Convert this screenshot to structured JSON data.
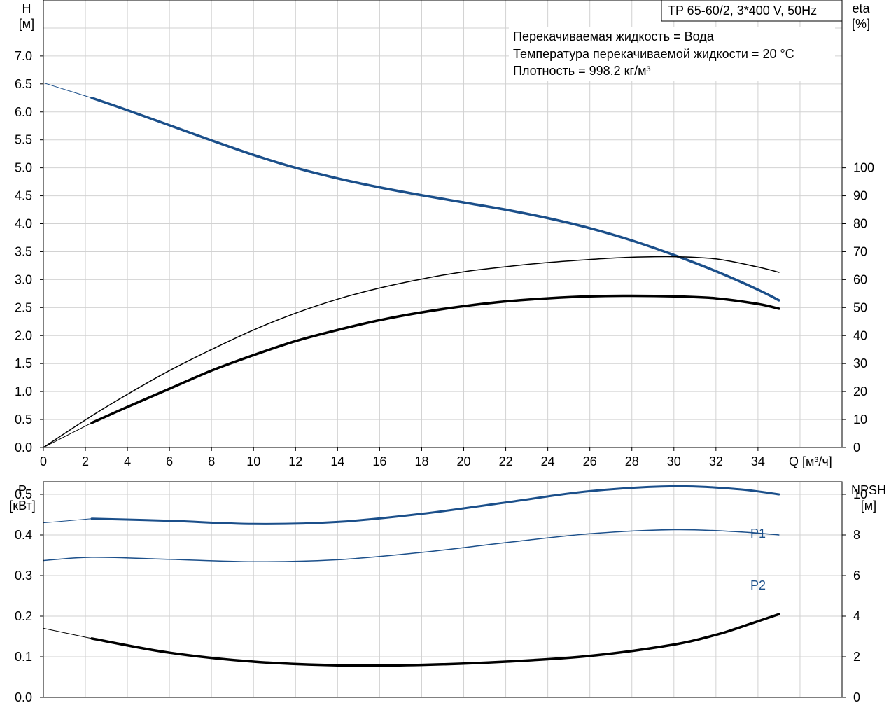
{
  "header": {
    "model": "TP 65-60/2, 3*400 V, 50Hz"
  },
  "info": {
    "line1": "Перекачиваемая жидкость = Вода",
    "line2": "Температура перекачиваемой жидкости = 20 °C",
    "line3": "Плотность = 998.2 кг/м³"
  },
  "labels": {
    "h_unit_name": "H",
    "h_unit": "[м]",
    "eta_unit_name": "eta",
    "eta_unit": "[%]",
    "q_unit": "Q [м³/ч]",
    "p_unit_name": "P",
    "p_unit": "[кВт]",
    "npsh_unit_name": "NPSH",
    "npsh_unit": "[м]",
    "p1": "P1",
    "p2": "P2"
  },
  "colors": {
    "blue": "#1b4f8a",
    "black": "#000000",
    "grid": "#d2d2d2"
  },
  "chart_data": [
    {
      "type": "line",
      "title": "",
      "xlabel": "Q [м³/ч]",
      "ylabel": "H [м]",
      "y2label": "eta [%]",
      "xlim": [
        0,
        38
      ],
      "ylim": [
        0,
        8
      ],
      "y2lim": [
        0,
        160
      ],
      "grid": true,
      "x_ticks": [
        0,
        2,
        4,
        6,
        8,
        10,
        12,
        14,
        16,
        18,
        20,
        22,
        24,
        26,
        28,
        30,
        32,
        34
      ],
      "y_ticks": [
        0.0,
        0.5,
        1.0,
        1.5,
        2.0,
        2.5,
        3.0,
        3.5,
        4.0,
        4.5,
        5.0,
        5.5,
        6.0,
        6.5,
        7.0
      ],
      "y2_ticks": [
        0,
        10,
        20,
        30,
        40,
        50,
        60,
        70,
        80,
        90,
        100
      ],
      "series": [
        {
          "axis": "left",
          "color": "blue",
          "width": 1,
          "x": [
            0,
            2.3
          ],
          "y": [
            6.52,
            6.25
          ]
        },
        {
          "axis": "left",
          "color": "blue",
          "width": 3.5,
          "x": [
            2.3,
            4,
            6,
            8,
            10,
            12,
            14,
            16,
            18,
            20,
            22,
            24,
            26,
            28,
            30,
            32,
            34,
            35
          ],
          "y": [
            6.25,
            6.03,
            5.76,
            5.49,
            5.23,
            5.0,
            4.81,
            4.65,
            4.51,
            4.38,
            4.25,
            4.1,
            3.92,
            3.7,
            3.44,
            3.15,
            2.82,
            2.63
          ]
        },
        {
          "axis": "right",
          "color": "black",
          "width": 1.5,
          "x": [
            0,
            2.3,
            4,
            6,
            8,
            10,
            12,
            14,
            16,
            18,
            20,
            22,
            24,
            26,
            28,
            30,
            32,
            34,
            35
          ],
          "y": [
            0,
            11.3,
            19,
            27.5,
            35,
            42,
            48,
            53,
            57,
            60.2,
            62.8,
            64.6,
            66.1,
            67.2,
            68,
            68.2,
            67.4,
            64.5,
            62.6
          ]
        },
        {
          "axis": "right",
          "color": "black",
          "width": 1,
          "x": [
            0,
            2.3
          ],
          "y": [
            0,
            8.8
          ]
        },
        {
          "axis": "right",
          "color": "black",
          "width": 3.5,
          "x": [
            2.3,
            4,
            6,
            8,
            10,
            12,
            14,
            16,
            18,
            20,
            22,
            24,
            26,
            28,
            30,
            32,
            34,
            35
          ],
          "y": [
            8.8,
            14.5,
            21,
            27.5,
            33,
            38,
            42,
            45.5,
            48.3,
            50.5,
            52.2,
            53.3,
            54,
            54.2,
            54,
            53.3,
            51.3,
            49.6
          ]
        }
      ]
    },
    {
      "type": "line",
      "title": "",
      "xlabel": "",
      "ylabel": "P [кВт]",
      "y2label": "NPSH [м]",
      "xlim": [
        0,
        38
      ],
      "ylim": [
        0,
        0.6
      ],
      "y2lim": [
        0,
        12
      ],
      "grid": true,
      "y_ticks": [
        0.0,
        0.1,
        0.2,
        0.3,
        0.4,
        0.5
      ],
      "y2_ticks": [
        0,
        2,
        4,
        6,
        8,
        10
      ],
      "series": [
        {
          "name": "P1",
          "axis": "left",
          "color": "blue",
          "width": 1,
          "x": [
            0,
            2.3
          ],
          "y": [
            0.43,
            0.44
          ]
        },
        {
          "name": "P1",
          "axis": "left",
          "color": "blue",
          "width": 3,
          "x": [
            2.3,
            6,
            10,
            14,
            18,
            22,
            26,
            30,
            33,
            35
          ],
          "y": [
            0.44,
            0.435,
            0.427,
            0.432,
            0.452,
            0.48,
            0.508,
            0.52,
            0.513,
            0.5
          ]
        },
        {
          "name": "P2",
          "axis": "left",
          "color": "blue",
          "width": 1.5,
          "x": [
            0,
            2.3,
            6,
            10,
            14,
            18,
            22,
            26,
            30,
            33,
            35
          ],
          "y": [
            0.337,
            0.345,
            0.34,
            0.334,
            0.339,
            0.357,
            0.381,
            0.403,
            0.413,
            0.408,
            0.4
          ]
        },
        {
          "axis": "right",
          "color": "black",
          "width": 1,
          "x": [
            0,
            2.3
          ],
          "y": [
            3.4,
            2.9
          ]
        },
        {
          "axis": "right",
          "color": "black",
          "width": 3.5,
          "x": [
            2.3,
            6,
            10,
            14,
            18,
            22,
            26,
            30,
            32,
            33,
            35
          ],
          "y": [
            2.9,
            2.2,
            1.76,
            1.58,
            1.6,
            1.76,
            2.04,
            2.6,
            3.08,
            3.4,
            4.1
          ]
        }
      ]
    }
  ]
}
